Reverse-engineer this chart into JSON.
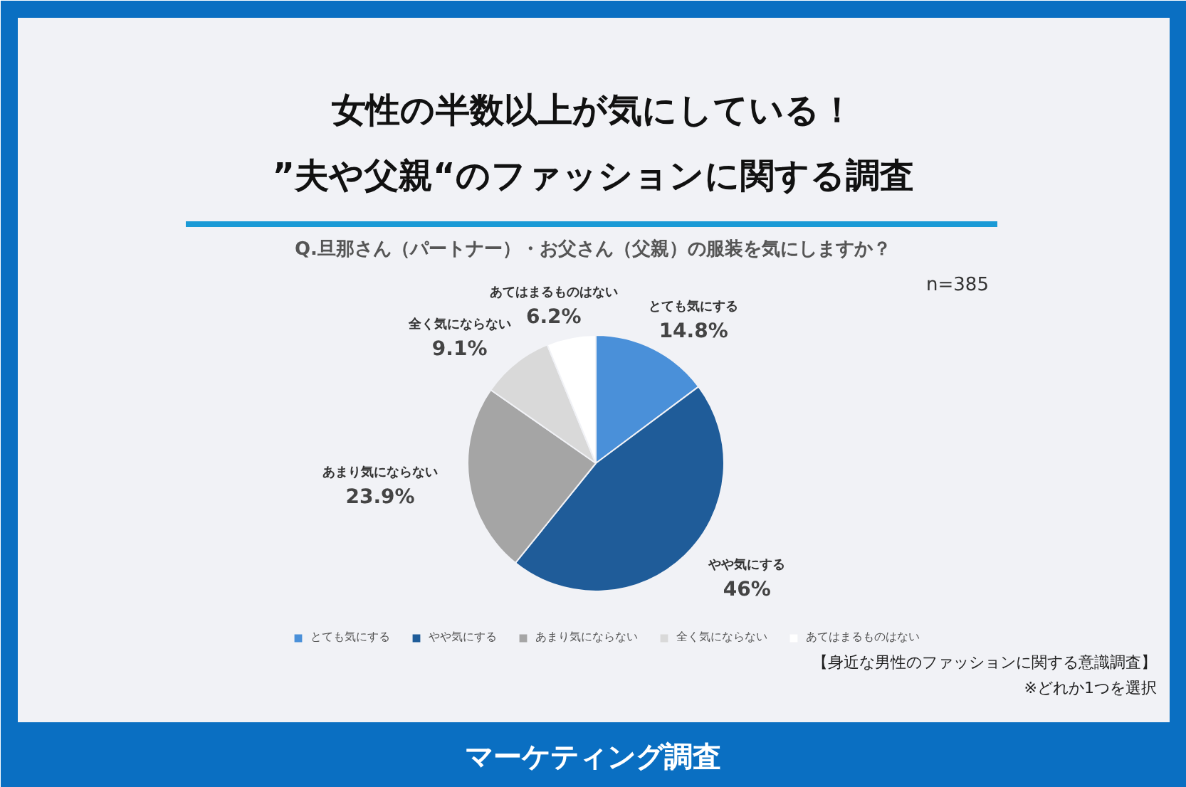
{
  "chart_data": {
    "type": "pie",
    "title": "女性の半数以上が気にしている！\n”夫や父親“のファッションに関する調査",
    "subtitle": "Q.旦那さん（パートナー）・お父さん（父親）の服装を気にしますか？",
    "categories": [
      "とても気にする",
      "やや気にする",
      "あまり気にならない",
      "全く気にならない",
      "あてはまるものはない"
    ],
    "values": [
      14.8,
      46,
      23.9,
      9.1,
      6.2
    ],
    "colors": [
      "#4a90d9",
      "#1f5c99",
      "#a5a5a5",
      "#d9d9d9",
      "#ffffff"
    ],
    "value_labels": [
      "14.8%",
      "46%",
      "23.9%",
      "9.1%",
      "6.2%"
    ],
    "legend": "bottom",
    "annotations": [
      "n=385",
      "【身近な男性のファッションに関する意識調査】",
      "※どれか1つを選択",
      "マーケティング調査"
    ]
  }
}
